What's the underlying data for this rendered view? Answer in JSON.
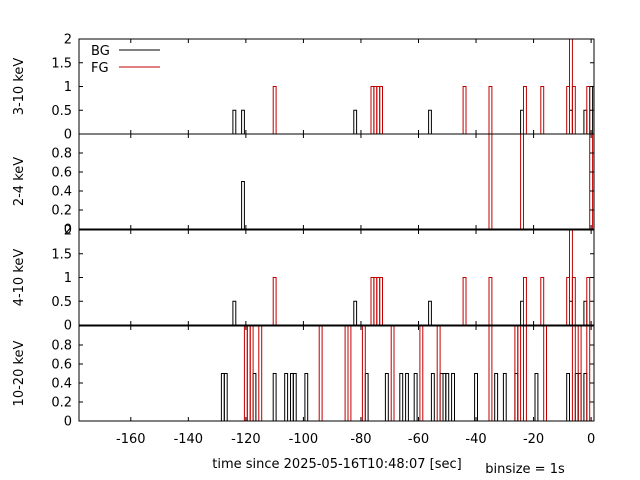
{
  "chart_data": {
    "type": "line",
    "step": true,
    "xlabel": "time since 2025-05-16T10:48:07 [sec]",
    "note": "binsize = 1s",
    "xlim": [
      -178,
      1
    ],
    "xticks": [
      -160,
      -140,
      -120,
      -100,
      -80,
      -60,
      -40,
      -20,
      0
    ],
    "legend": {
      "position": "top-left",
      "entries": [
        {
          "name": "BG",
          "color": "#000000"
        },
        {
          "name": "FG",
          "color": "#c00000"
        }
      ]
    },
    "panels": [
      {
        "ylabel": "3-10 keV",
        "ylim": [
          0,
          2
        ],
        "yticks": [
          0,
          0.5,
          1,
          1.5,
          2
        ],
        "series": [
          {
            "name": "BG",
            "color": "#000000",
            "x": [
              -124,
              -121,
              -82,
              -56,
              -24,
              -7,
              -2,
              0
            ],
            "values": [
              0.5,
              0.5,
              0.5,
              0.5,
              0.5,
              0.5,
              0.5,
              1
            ]
          },
          {
            "name": "FG",
            "color": "#c00000",
            "x": [
              -110,
              -76,
              -75,
              -74,
              -73,
              -44,
              -35,
              -23,
              -17,
              -8,
              -7,
              -6,
              -1
            ],
            "values": [
              1,
              1,
              1,
              1,
              1,
              1,
              1,
              1,
              1,
              1,
              2,
              1,
              1
            ]
          }
        ]
      },
      {
        "ylabel": "2-4 keV",
        "ylim": [
          0,
          1
        ],
        "yticks": [
          0,
          0.2,
          0.4,
          0.6,
          0.8
        ],
        "series": [
          {
            "name": "BG",
            "color": "#000000",
            "x": [
              -121
            ],
            "values": [
              0.5
            ]
          },
          {
            "name": "FG",
            "color": "#c00000",
            "x": [
              -35,
              -24,
              0
            ],
            "values": [
              1,
              1,
              1
            ]
          }
        ]
      },
      {
        "ylabel": "4-10 keV",
        "ylim": [
          0,
          2
        ],
        "yticks": [
          0,
          0.5,
          1,
          1.5,
          2
        ],
        "series": [
          {
            "name": "BG",
            "color": "#000000",
            "x": [
              -124,
              -82,
              -56,
              -24,
              -7,
              -2
            ],
            "values": [
              0.5,
              0.5,
              0.5,
              0.5,
              0.5,
              0.5
            ]
          },
          {
            "name": "FG",
            "color": "#c00000",
            "x": [
              -110,
              -76,
              -75,
              -74,
              -73,
              -44,
              -35,
              -23,
              -17,
              -8,
              -7,
              -6,
              -1
            ],
            "values": [
              1,
              1,
              1,
              1,
              1,
              1,
              1,
              1,
              1,
              1,
              2,
              1,
              1
            ]
          }
        ]
      },
      {
        "ylabel": "10-20 keV",
        "ylim": [
          0,
          1
        ],
        "yticks": [
          0,
          0.2,
          0.4,
          0.6,
          0.8
        ],
        "series": [
          {
            "name": "BG",
            "color": "#000000",
            "x": [
              -128,
              -127,
              -117,
              -110,
              -106,
              -104,
              -103,
              -99,
              -78,
              -71,
              -66,
              -64,
              -61,
              -55,
              -52,
              -51,
              -50,
              -48,
              -40,
              -33,
              -30,
              -26,
              -19,
              -8,
              -5,
              -4,
              -2
            ],
            "values": [
              0.5,
              0.5,
              0.5,
              0.5,
              0.5,
              0.5,
              0.5,
              0.5,
              0.5,
              0.5,
              0.5,
              0.5,
              0.5,
              0.5,
              0.5,
              0.5,
              0.5,
              0.5,
              0.5,
              0.5,
              0.5,
              0.5,
              0.5,
              0.5,
              0.5,
              0.5,
              0.5
            ]
          },
          {
            "name": "FG",
            "color": "#c00000",
            "x": [
              -120,
              -119,
              -118,
              -115,
              -94,
              -85,
              -84,
              -79,
              -69,
              -59,
              -53,
              -35,
              -26,
              -25,
              -23,
              -16,
              -6,
              -4,
              -1
            ],
            "values": [
              1,
              1,
              1,
              1,
              1,
              1,
              1,
              1,
              1,
              1,
              1,
              1,
              1,
              1,
              1,
              1,
              1,
              1,
              1
            ]
          }
        ]
      }
    ]
  }
}
